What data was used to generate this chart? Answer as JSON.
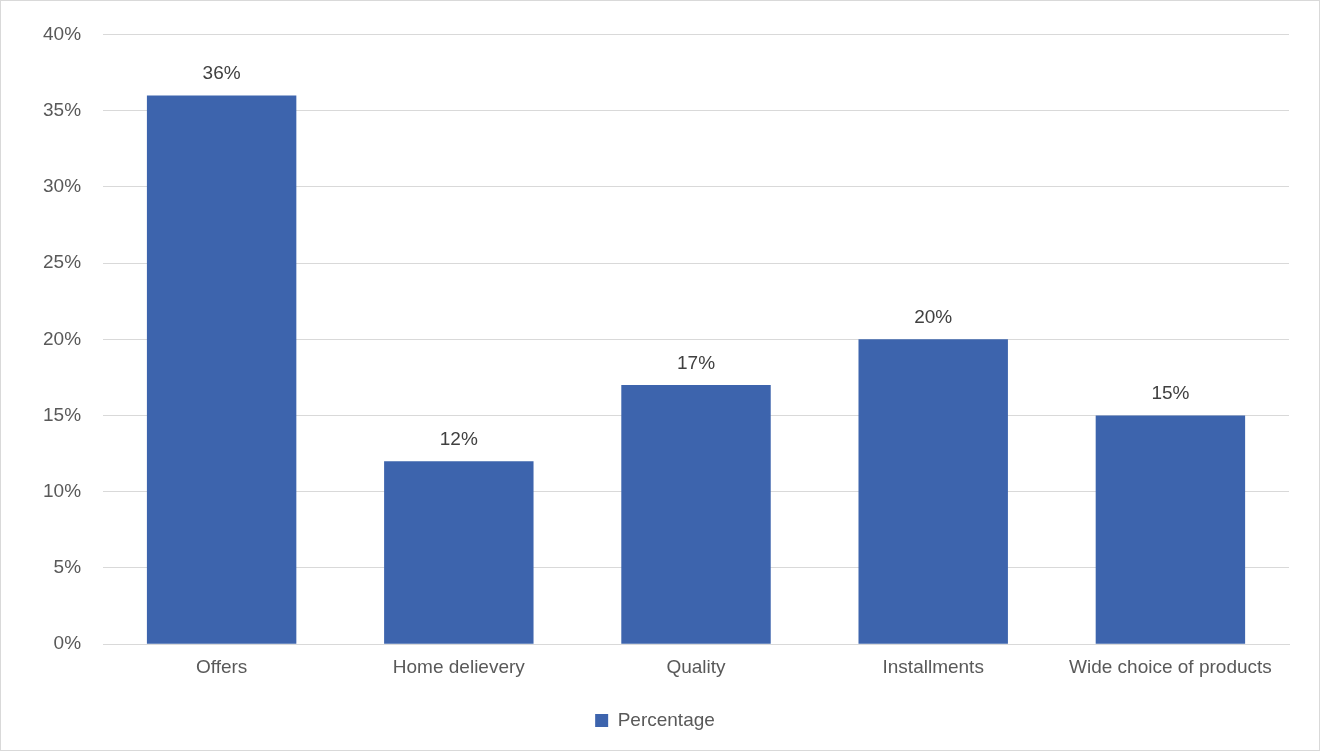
{
  "chart_data": {
    "type": "bar",
    "categories": [
      "Offers",
      "Home delievery",
      "Quality",
      "Installments",
      "Wide choice of products"
    ],
    "series": [
      {
        "name": "Percentage",
        "color": "#3d64ad",
        "values": [
          36,
          12,
          17,
          20,
          15
        ],
        "value_labels": [
          "36%",
          "12%",
          "17%",
          "20%",
          "15%"
        ]
      }
    ],
    "ylim": [
      0,
      40
    ],
    "yticks": [
      {
        "value": 0,
        "label": "0%"
      },
      {
        "value": 5,
        "label": "5%"
      },
      {
        "value": 10,
        "label": "10%"
      },
      {
        "value": 15,
        "label": "15%"
      },
      {
        "value": 20,
        "label": "20%"
      },
      {
        "value": 25,
        "label": "25%"
      },
      {
        "value": 30,
        "label": "30%"
      },
      {
        "value": 35,
        "label": "35%"
      },
      {
        "value": 40,
        "label": "40%"
      }
    ],
    "grid": "y",
    "legend": "bottom"
  }
}
